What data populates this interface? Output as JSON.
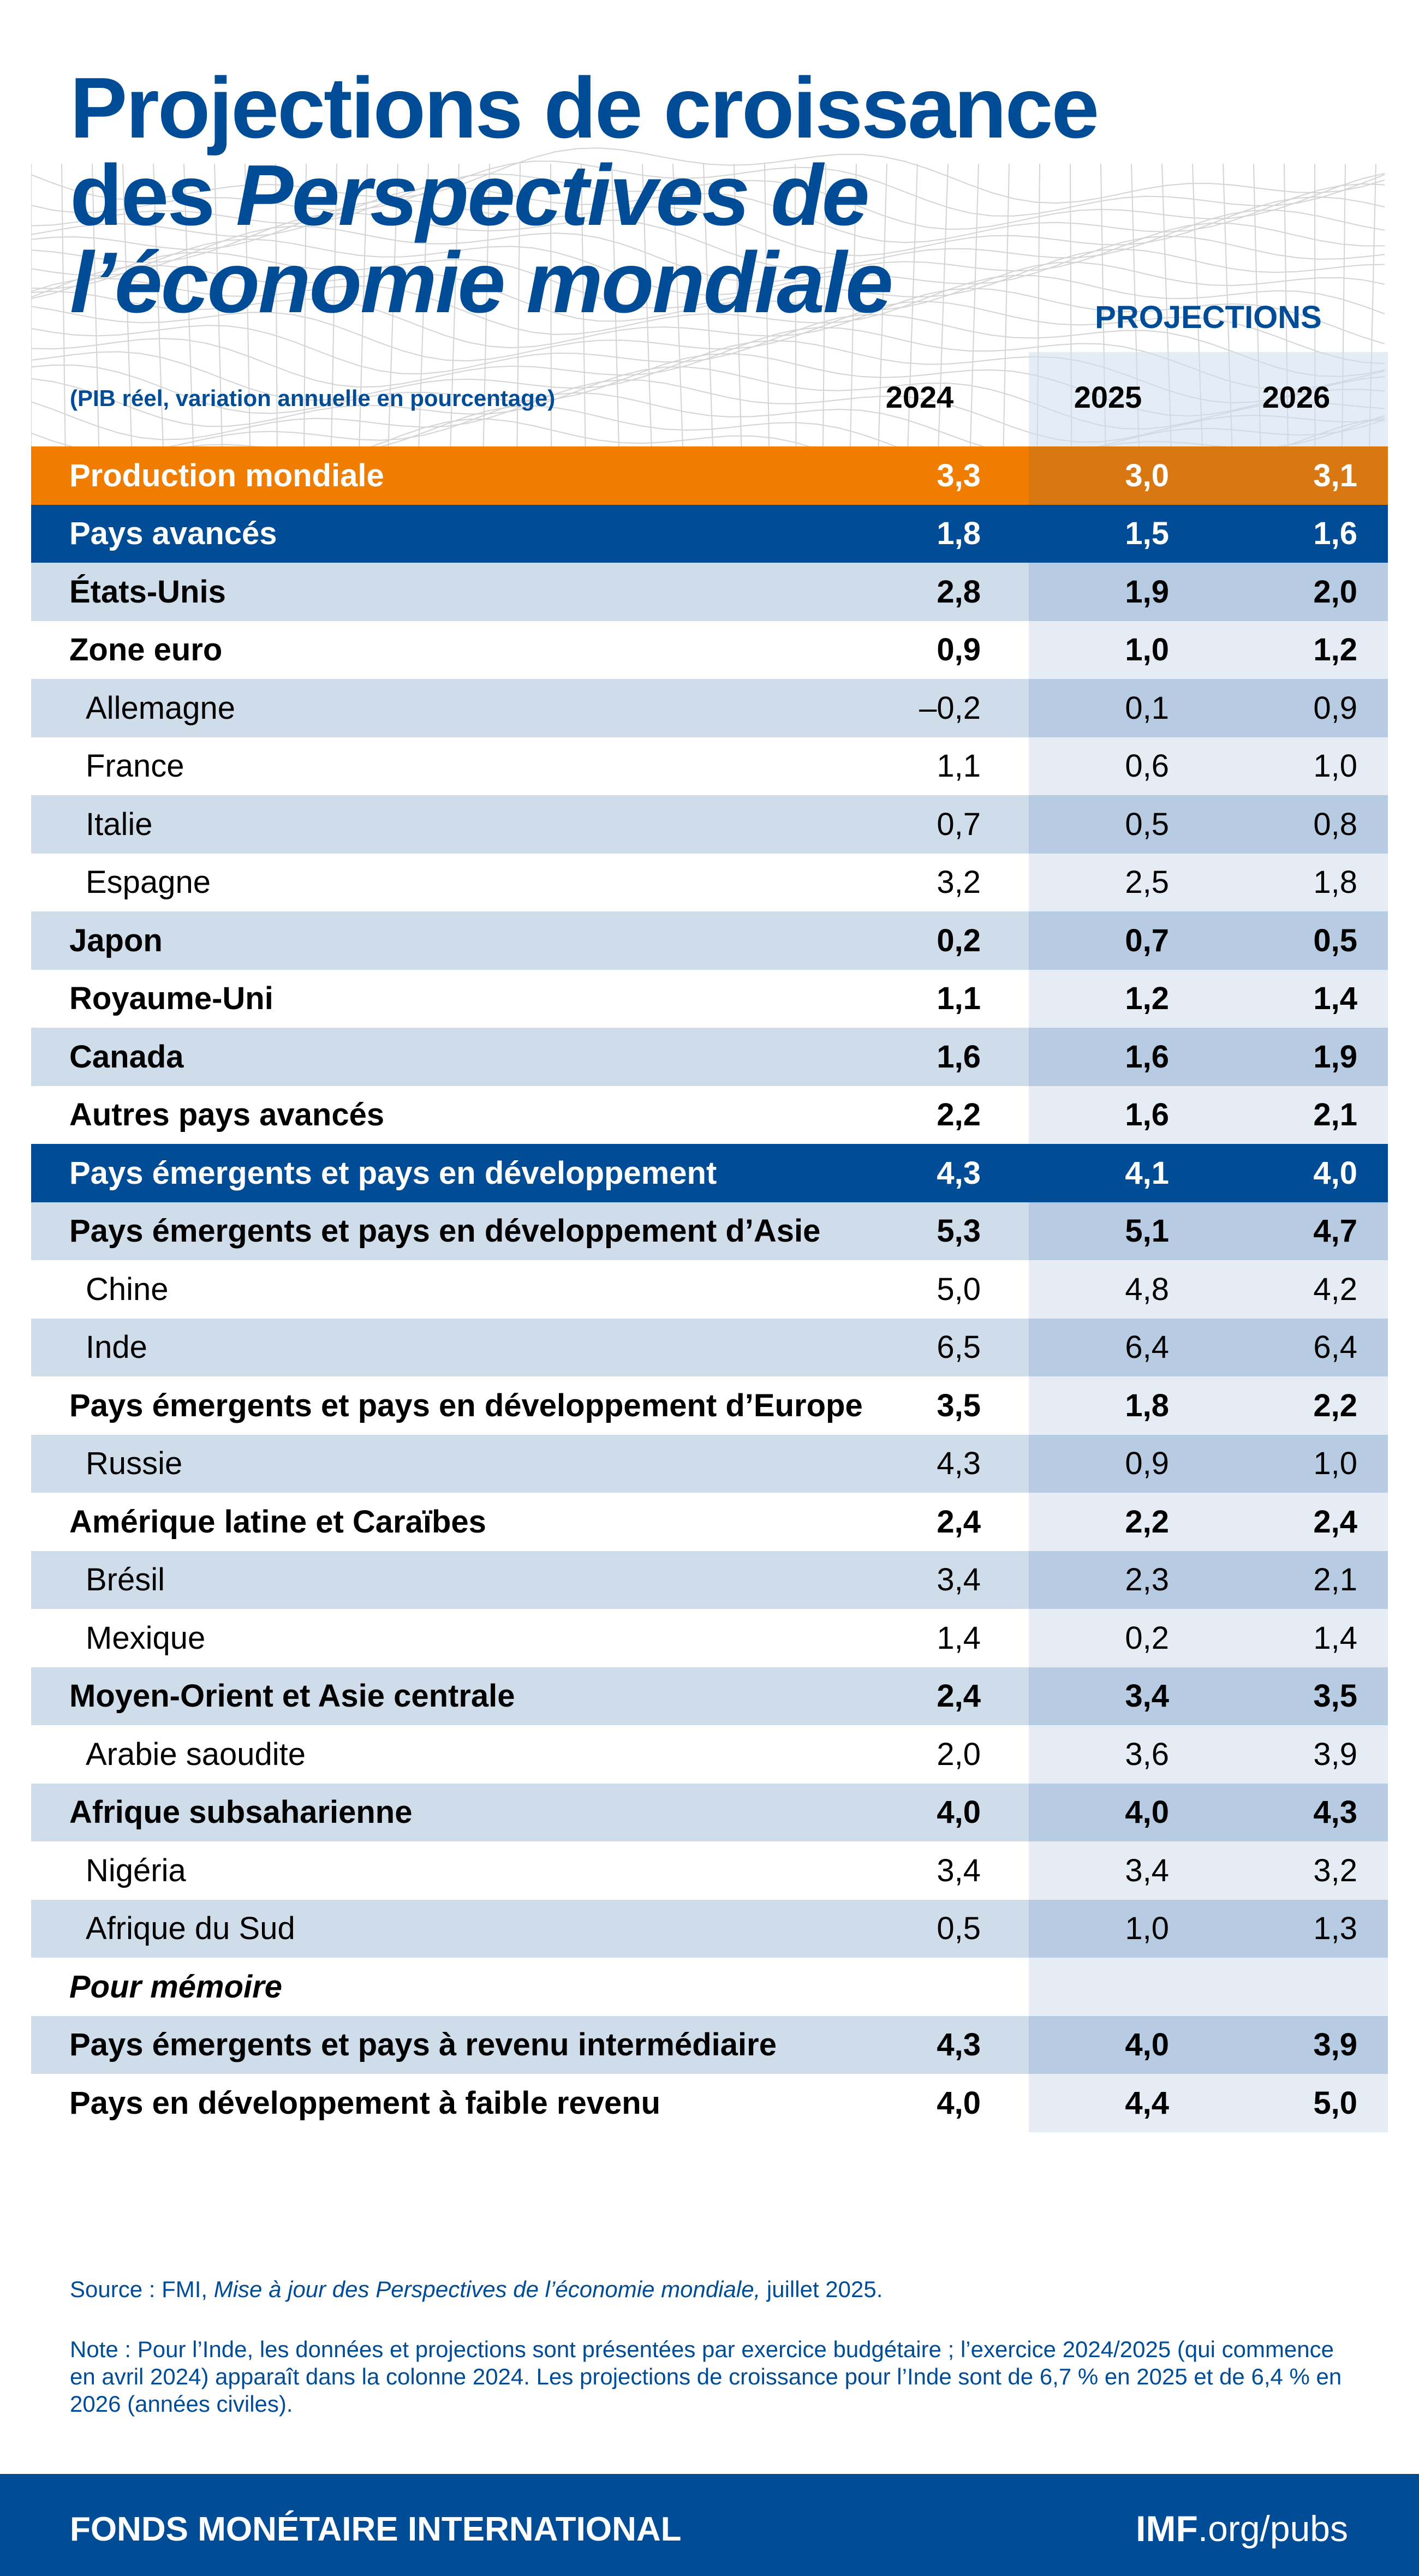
{
  "title": {
    "line1": "Projections de croissance",
    "line2_prefix": "des ",
    "line2_italic": "Perspectives de",
    "line3_italic": "l’économie mondiale"
  },
  "projections_label": "PROJECTIONS",
  "subtitle": "(PIB réel, variation annuelle en pourcentage)",
  "years": [
    "2024",
    "2025",
    "2026"
  ],
  "rows": [
    {
      "label": "Production mondiale",
      "values": [
        "3,3",
        "3,0",
        "3,1"
      ],
      "style": "orange"
    },
    {
      "label": "Pays avancés",
      "values": [
        "1,8",
        "1,5",
        "1,6"
      ],
      "style": "blue"
    },
    {
      "label": "États-Unis",
      "values": [
        "2,8",
        "1,9",
        "2,0"
      ],
      "style": "alt bold"
    },
    {
      "label": "Zone euro",
      "values": [
        "0,9",
        "1,0",
        "1,2"
      ],
      "style": "plain bold"
    },
    {
      "label": "Allemagne",
      "values": [
        "–0,2",
        "0,1",
        "0,9"
      ],
      "style": "alt sub"
    },
    {
      "label": "France",
      "values": [
        "1,1",
        "0,6",
        "1,0"
      ],
      "style": "plain sub"
    },
    {
      "label": "Italie",
      "values": [
        "0,7",
        "0,5",
        "0,8"
      ],
      "style": "alt sub"
    },
    {
      "label": "Espagne",
      "values": [
        "3,2",
        "2,5",
        "1,8"
      ],
      "style": "plain sub"
    },
    {
      "label": "Japon",
      "values": [
        "0,2",
        "0,7",
        "0,5"
      ],
      "style": "alt bold"
    },
    {
      "label": "Royaume-Uni",
      "values": [
        "1,1",
        "1,2",
        "1,4"
      ],
      "style": "plain bold"
    },
    {
      "label": "Canada",
      "values": [
        "1,6",
        "1,6",
        "1,9"
      ],
      "style": "alt bold"
    },
    {
      "label": "Autres pays avancés",
      "values": [
        "2,2",
        "1,6",
        "2,1"
      ],
      "style": "plain bold"
    },
    {
      "label": "Pays émergents et pays en développement",
      "values": [
        "4,3",
        "4,1",
        "4,0"
      ],
      "style": "blue"
    },
    {
      "label": "Pays émergents et pays en développement d’Asie",
      "values": [
        "5,3",
        "5,1",
        "4,7"
      ],
      "style": "alt bold"
    },
    {
      "label": "Chine",
      "values": [
        "5,0",
        "4,8",
        "4,2"
      ],
      "style": "plain sub"
    },
    {
      "label": "Inde",
      "values": [
        "6,5",
        "6,4",
        "6,4"
      ],
      "style": "alt sub"
    },
    {
      "label": "Pays émergents et pays en développement d’Europe",
      "values": [
        "3,5",
        "1,8",
        "2,2"
      ],
      "style": "plain bold"
    },
    {
      "label": "Russie",
      "values": [
        "4,3",
        "0,9",
        "1,0"
      ],
      "style": "alt sub"
    },
    {
      "label": "Amérique latine et Caraïbes",
      "values": [
        "2,4",
        "2,2",
        "2,4"
      ],
      "style": "plain bold"
    },
    {
      "label": "Brésil",
      "values": [
        "3,4",
        "2,3",
        "2,1"
      ],
      "style": "alt sub"
    },
    {
      "label": "Mexique",
      "values": [
        "1,4",
        "0,2",
        "1,4"
      ],
      "style": "plain sub"
    },
    {
      "label": "Moyen-Orient et Asie centrale",
      "values": [
        "2,4",
        "3,4",
        "3,5"
      ],
      "style": "alt bold"
    },
    {
      "label": "Arabie saoudite",
      "values": [
        "2,0",
        "3,6",
        "3,9"
      ],
      "style": "plain sub"
    },
    {
      "label": "Afrique subsaharienne",
      "values": [
        "4,0",
        "4,0",
        "4,3"
      ],
      "style": "alt bold"
    },
    {
      "label": "Nigéria",
      "values": [
        "3,4",
        "3,4",
        "3,2"
      ],
      "style": "plain sub"
    },
    {
      "label": "Afrique du Sud",
      "values": [
        "0,5",
        "1,0",
        "1,3"
      ],
      "style": "alt sub"
    },
    {
      "label": "Pour mémoire",
      "values": [
        "",
        "",
        ""
      ],
      "style": "plain italic"
    },
    {
      "label": "Pays émergents et pays à revenu intermédiaire",
      "values": [
        "4,3",
        "4,0",
        "3,9"
      ],
      "style": "alt bold"
    },
    {
      "label": "Pays en développement à faible revenu",
      "values": [
        "4,0",
        "4,4",
        "5,0"
      ],
      "style": "plain bold"
    }
  ],
  "source": {
    "prefix": "Source : FMI, ",
    "italic": "Mise à jour des Perspectives de l’économie mondiale,",
    "suffix": " juillet 2025."
  },
  "note": "Note : Pour l’Inde, les données et projections sont présentées par exercice budgétaire ; l’exercice 2024/2025 (qui commence en avril 2024) apparaît dans la colonne 2024. Les projections de croissance pour l’Inde sont de 6,7 % en 2025 et de 6,4 % en 2026 (années civiles).",
  "footer": {
    "org": "FONDS MONÉTAIRE INTERNATIONAL",
    "url_bold": "IMF",
    "url_rest": ".org/pubs"
  },
  "colors": {
    "brand_blue": "#004c97",
    "orange": "#f07d00",
    "orange_projection": "#d97713",
    "row_alt": "#cfdcea",
    "row_alt_projection": "#b7cce2",
    "row_plain_projection": "#e5ecf4"
  }
}
